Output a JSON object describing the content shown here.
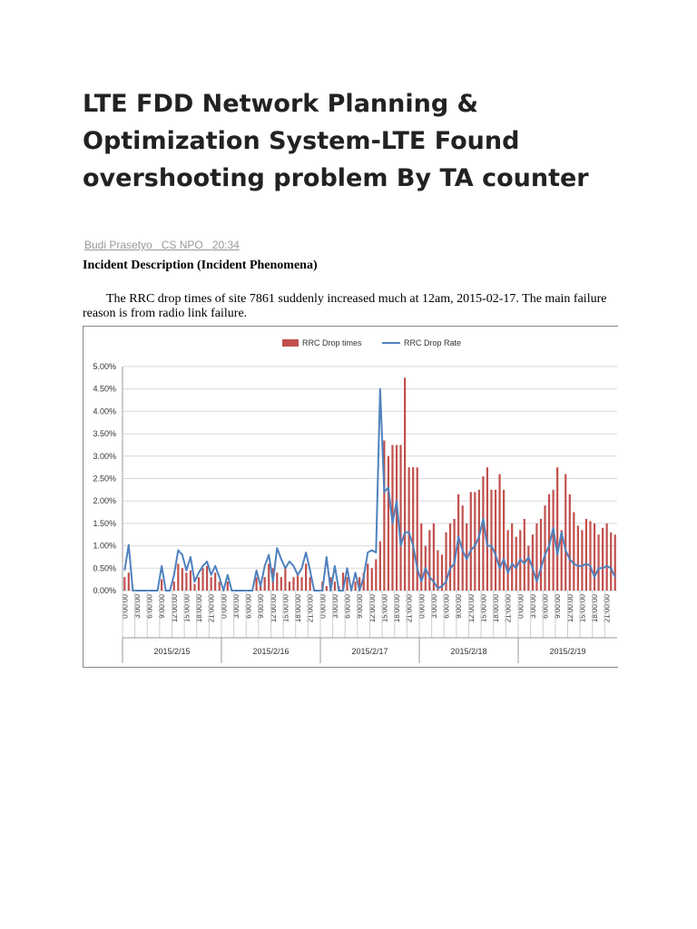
{
  "header": {
    "title": "LTE FDD Network Planning & Optimization System-LTE Found overshooting problem By TA counter",
    "author": "Budi Prasetyo",
    "category": "CS NPO",
    "time": "20:34"
  },
  "section": {
    "heading": "Incident Description (Incident Phenomena)",
    "paragraph": "The RRC drop times of site 7861 suddenly increased much at 12am, 2015-02-17. The main failure reason is from radio link failure."
  },
  "chart_data": {
    "type": "bar-line",
    "categories": [
      "0:00:00",
      null,
      null,
      "3:00:00",
      null,
      null,
      "6:00:00",
      null,
      null,
      "9:00:00",
      null,
      null,
      "12:00:00",
      null,
      null,
      "15:00:00",
      null,
      null,
      "18:00:00",
      null,
      null,
      "21:00:00",
      null,
      null,
      "0:00:00",
      null,
      null,
      "3:00:00",
      null,
      null,
      "6:00:00",
      null,
      null,
      "9:00:00",
      null,
      null,
      "12:00:00",
      null,
      null,
      "15:00:00",
      null,
      null,
      "18:00:00",
      null,
      null,
      "21:00:00",
      null,
      null,
      "0:00:00",
      null,
      null,
      "3:00:00",
      null,
      null,
      "6:00:00",
      null,
      null,
      "9:00:00",
      null,
      null,
      "12:00:00",
      null,
      null,
      "15:00:00",
      null,
      null,
      "18:00:00",
      null,
      null,
      "21:00:00",
      null,
      null,
      "0:00:00",
      null,
      null,
      "3:00:00",
      null,
      null,
      "6:00:00",
      null,
      null,
      "9:00:00",
      null,
      null,
      "12:00:00",
      null,
      null,
      "15:00:00",
      null,
      null,
      "18:00:00",
      null,
      null,
      "21:00:00",
      null,
      null,
      "0:00:00",
      null,
      null,
      "3:00:00",
      null,
      null,
      "6:00:00",
      null,
      null,
      "9:00:00",
      null,
      null,
      "12:00:00",
      null,
      null,
      "15:00:00",
      null,
      null,
      "18:00:00",
      null,
      null,
      "21:00:00",
      null,
      null
    ],
    "groups": [
      "2015/2/15",
      "2015/2/16",
      "2015/2/17",
      "2015/2/18",
      "2015/2/19"
    ],
    "series": [
      {
        "name": "RRC Drop times",
        "type": "bar",
        "color": "#c0504d",
        "values": [
          0.3,
          0.4,
          0,
          0,
          0,
          0,
          0,
          0,
          0,
          0.25,
          0,
          0,
          0.2,
          0.6,
          0.5,
          0.4,
          0.45,
          0.15,
          0.3,
          0.5,
          0.55,
          0.3,
          0.4,
          0.2,
          0,
          0.2,
          0,
          0,
          0,
          0,
          0,
          0,
          0.3,
          0.1,
          0.3,
          0.6,
          0.5,
          0.4,
          0.3,
          0.5,
          0.2,
          0.3,
          0.4,
          0.3,
          0.6,
          0.3,
          0,
          0,
          0.2,
          0.1,
          0.3,
          0.2,
          0.1,
          0.4,
          0.3,
          0.1,
          0.2,
          0.3,
          0.4,
          0.6,
          0.5,
          0.7,
          1.1,
          3.35,
          3.0,
          3.25,
          3.25,
          3.25,
          4.75,
          2.75,
          2.75,
          2.75,
          1.5,
          1.0,
          1.35,
          1.5,
          0.9,
          0.8,
          1.3,
          1.5,
          1.6,
          2.15,
          1.9,
          1.5,
          2.2,
          2.2,
          2.25,
          2.55,
          2.75,
          2.25,
          2.25,
          2.6,
          2.25,
          1.35,
          1.5,
          1.2,
          1.35,
          1.6,
          1.0,
          1.25,
          1.5,
          1.6,
          1.9,
          2.15,
          2.25,
          2.75,
          1.35,
          2.6,
          2.15,
          1.75,
          1.45,
          1.35,
          1.6,
          1.55,
          1.5,
          1.25,
          1.4,
          1.5,
          1.3,
          1.25
        ]
      },
      {
        "name": "RRC Drop Rate",
        "type": "line",
        "color": "#4f81bd",
        "values": [
          0.45,
          1.02,
          0,
          0,
          0,
          0,
          0,
          0,
          0,
          0.55,
          0,
          0,
          0.35,
          0.9,
          0.8,
          0.45,
          0.75,
          0.2,
          0.4,
          0.55,
          0.65,
          0.35,
          0.55,
          0.3,
          0,
          0.35,
          0,
          0,
          0,
          0,
          0,
          0,
          0.45,
          0.1,
          0.55,
          0.8,
          0.2,
          0.95,
          0.7,
          0.5,
          0.65,
          0.55,
          0.35,
          0.5,
          0.85,
          0.45,
          0,
          0,
          0,
          0.75,
          0,
          0.55,
          0,
          0,
          0.5,
          0,
          0.4,
          0,
          0.3,
          0.85,
          0.9,
          0.85,
          4.5,
          2.2,
          2.3,
          1.5,
          2.0,
          1.0,
          1.3,
          1.3,
          1.0,
          0.5,
          0.2,
          0.5,
          0.3,
          0.2,
          0.05,
          0.1,
          0.2,
          0.5,
          0.6,
          1.2,
          0.9,
          0.7,
          0.9,
          1.0,
          1.2,
          1.6,
          1.0,
          1.0,
          0.8,
          0.5,
          0.7,
          0.4,
          0.6,
          0.5,
          0.7,
          0.6,
          0.75,
          0.5,
          0.2,
          0.5,
          0.8,
          1.0,
          1.4,
          0.8,
          1.3,
          0.9,
          0.7,
          0.6,
          0.55,
          0.55,
          0.6,
          0.55,
          0.3,
          0.5,
          0.5,
          0.55,
          0.5,
          0.3
        ]
      }
    ],
    "ylim": [
      0,
      5
    ],
    "yticks": [
      {
        "value": 0,
        "label": "0.00%"
      },
      {
        "value": 0.5,
        "label": "0.50%"
      },
      {
        "value": 1,
        "label": "1.00%"
      },
      {
        "value": 1.5,
        "label": "1.50%"
      },
      {
        "value": 2,
        "label": "2.00%"
      },
      {
        "value": 2.5,
        "label": "2.50%"
      },
      {
        "value": 3,
        "label": "3.00%"
      },
      {
        "value": 3.5,
        "label": "3.50%"
      },
      {
        "value": 4,
        "label": "4.00%"
      },
      {
        "value": 4.5,
        "label": "4.50%"
      },
      {
        "value": 5,
        "label": "5.00%"
      }
    ],
    "grid": true,
    "legend": "top"
  }
}
